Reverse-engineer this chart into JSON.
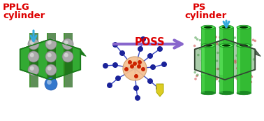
{
  "bg_color": "#ffffff",
  "left_label_1": "PPLG",
  "left_label_2": "cylinder",
  "right_label_1": "PS",
  "right_label_2": "cylinder",
  "arrow_label": "POSS",
  "label_color": "#dd0000",
  "arrow_color": "#8866cc",
  "cyan_arrow_color": "#33aadd",
  "green_bright": "#44cc44",
  "green_mid": "#33aa33",
  "green_dark": "#1a7a1a",
  "green_slot": "#1a6010",
  "sphere_gray": "#aaaaaa",
  "sphere_gray_dark": "#777777",
  "sphere_blue": "#3377cc",
  "mol_center": "#f5c090",
  "mol_red": "#cc2200",
  "mol_node": "#1a2299",
  "mol_bond": "#2233bb",
  "yellow_color": "#ddcc22",
  "matrix_bg": "#aaccaa",
  "matrix_dot_r": "#cc4444",
  "matrix_dot_g": "#449944",
  "cyl_green": "#33bb33",
  "cyl_light": "#55ee55",
  "cyl_dark": "#1a8822",
  "cyl_inner": "#003300"
}
